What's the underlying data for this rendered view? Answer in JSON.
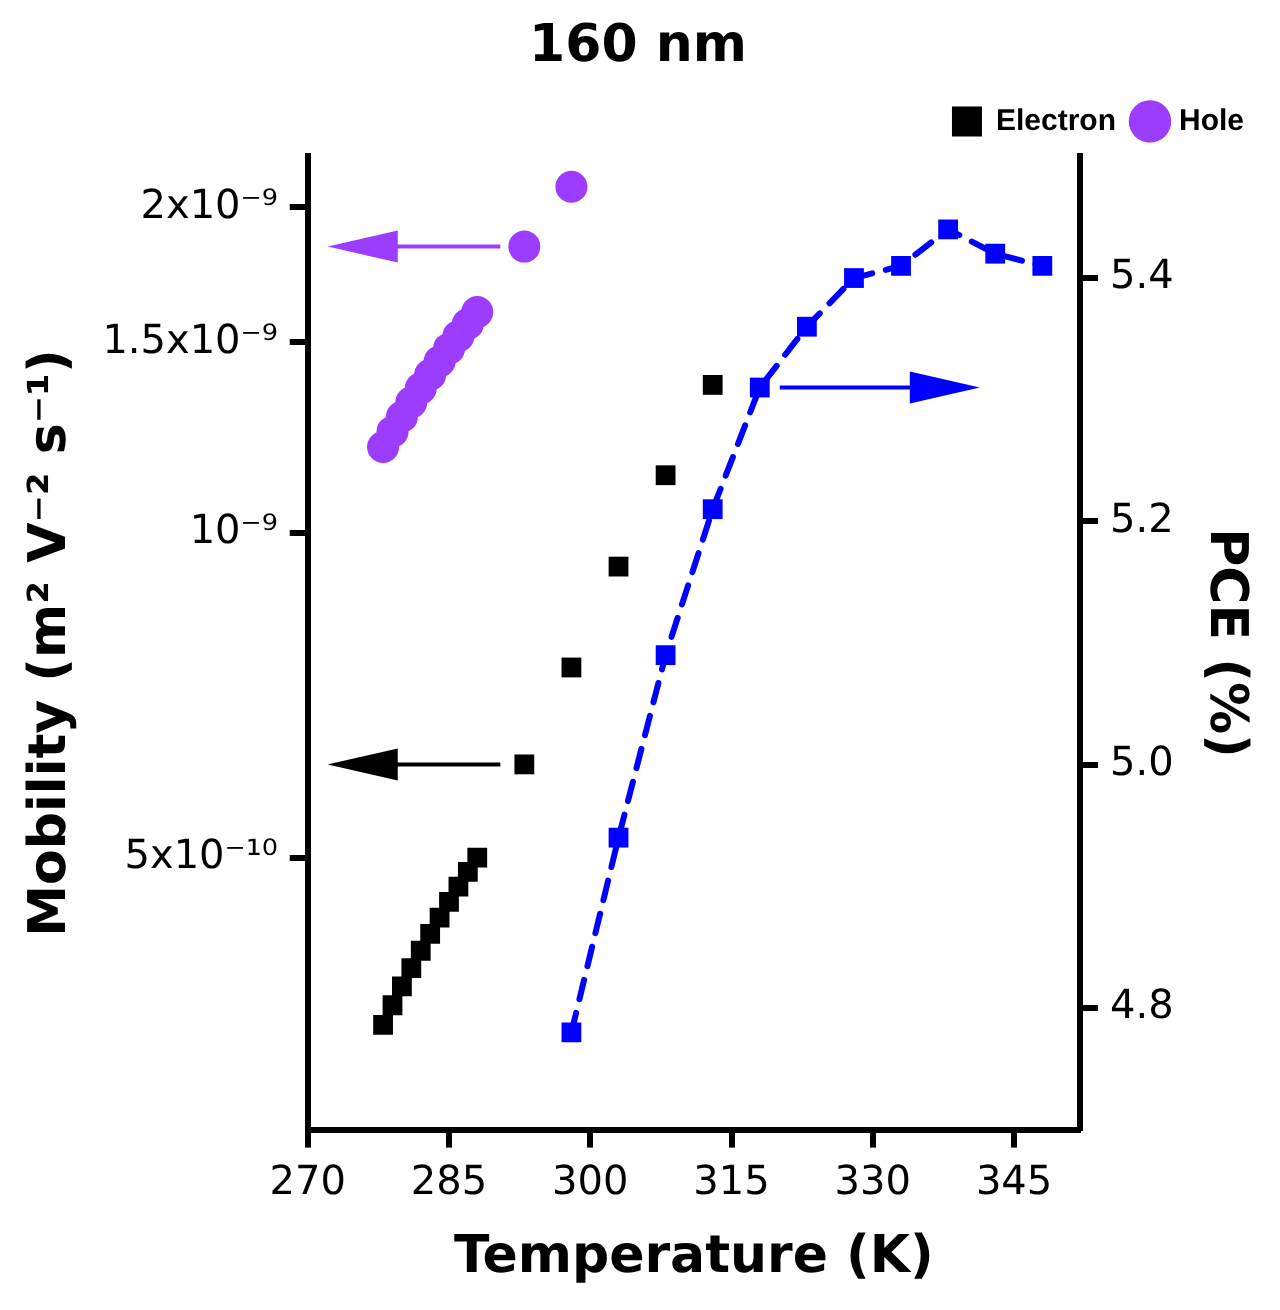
{
  "chart_data": {
    "type": "scatter",
    "title": "160 nm",
    "xlabel": "Temperature (K)",
    "ylabel": "Mobility (m² V⁻² s⁻¹)",
    "y2label": "PCE (%)",
    "xlim": [
      270,
      352
    ],
    "xticks": [
      270,
      285,
      300,
      315,
      330,
      345
    ],
    "ylim": [
      2.8e-10,
      2.23e-09
    ],
    "yticks": [
      {
        "value": 5e-10,
        "label": "5x10⁻¹⁰"
      },
      {
        "value": 1e-09,
        "label": "10⁻⁹"
      },
      {
        "value": 1.5e-09,
        "label": "1.5x10⁻⁹"
      },
      {
        "value": 2e-09,
        "label": "2x10⁻⁹"
      }
    ],
    "log": "y",
    "y2lim": [
      4.7,
      5.5
    ],
    "y2ticks": [
      4.8,
      {
        "value": 5,
        "label": "5.0"
      },
      5.2,
      5.4
    ],
    "grid": false,
    "legend": "top right",
    "series": [
      {
        "name": "Electron",
        "color": "#000000",
        "marker": "square",
        "x": [
          278,
          279,
          280,
          281,
          282,
          283,
          284,
          285,
          286,
          287,
          288,
          293,
          298,
          303,
          308,
          313
        ],
        "values": [
          3.5e-10,
          3.65e-10,
          3.8e-10,
          3.95e-10,
          4.1e-10,
          4.25e-10,
          4.4e-10,
          4.55e-10,
          4.7e-10,
          4.85e-10,
          5e-10,
          6.1e-10,
          7.5e-10,
          9.3e-10,
          1.13e-09,
          1.37e-09
        ]
      },
      {
        "name": "Hole",
        "color": "#9b3cff",
        "marker": "circle",
        "x": [
          278,
          279,
          280,
          281,
          282,
          283,
          284,
          285,
          286,
          287,
          288,
          293,
          298
        ],
        "values": [
          1.2e-09,
          1.24e-09,
          1.28e-09,
          1.32e-09,
          1.36e-09,
          1.4e-09,
          1.44e-09,
          1.48e-09,
          1.52e-09,
          1.56e-09,
          1.6e-09,
          1.84e-09,
          2.09e-09
        ]
      },
      {
        "type": "line",
        "axis": "y2",
        "color": "#0000ff",
        "marker": "square",
        "line_style": "dashed",
        "x": [
          298,
          303,
          308,
          313,
          318,
          323,
          328,
          333,
          338,
          343,
          348
        ],
        "values": [
          4.78,
          4.94,
          5.09,
          5.21,
          5.31,
          5.36,
          5.4,
          5.41,
          5.44,
          5.42,
          5.41
        ]
      }
    ]
  }
}
